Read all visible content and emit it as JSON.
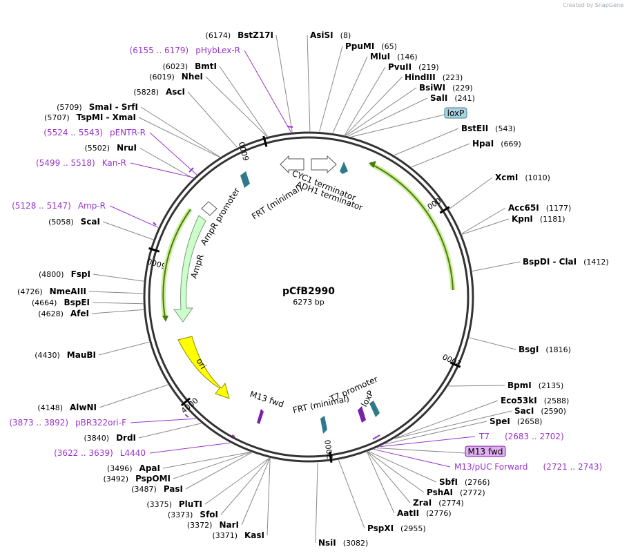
{
  "credit": {
    "prefix": "Created by",
    "brand": "SnapGene"
  },
  "plasmid": {
    "name": "pCfB2990",
    "size_label": "6273 bp",
    "length": 6273
  },
  "ticks": [
    "1000",
    "2000",
    "3000",
    "4000",
    "5000",
    "6000"
  ],
  "sites_right": [
    {
      "name": "AsiSI",
      "pos": "(8)"
    },
    {
      "name": "PpuMI",
      "pos": "(65)"
    },
    {
      "name": "MluI",
      "pos": "(146)"
    },
    {
      "name": "PvuII",
      "pos": "(219)"
    },
    {
      "name": "HindIII",
      "pos": "(223)"
    },
    {
      "name": "BsiWI",
      "pos": "(229)"
    },
    {
      "name": "SalI",
      "pos": "(241)"
    },
    {
      "name": "BstEII",
      "pos": "(543)"
    },
    {
      "name": "HpaI",
      "pos": "(669)"
    },
    {
      "name": "XcmI",
      "pos": "(1010)"
    },
    {
      "name": "Acc65I",
      "pos": "(1177)"
    },
    {
      "name": "KpnI",
      "pos": "(1181)"
    },
    {
      "name": "BspDI - ClaI",
      "pos": "(1412)"
    },
    {
      "name": "BsgI",
      "pos": "(1816)"
    },
    {
      "name": "BpmI",
      "pos": "(2135)"
    },
    {
      "name": "Eco53kI",
      "pos": "(2588)"
    },
    {
      "name": "SacI",
      "pos": "(2590)"
    },
    {
      "name": "SpeI",
      "pos": "(2658)"
    },
    {
      "name": "SbfI",
      "pos": "(2766)"
    },
    {
      "name": "PshAI",
      "pos": "(2772)"
    },
    {
      "name": "ZraI",
      "pos": "(2774)"
    },
    {
      "name": "AatII",
      "pos": "(2776)"
    },
    {
      "name": "PspXI",
      "pos": "(2955)"
    },
    {
      "name": "NsiI",
      "pos": "(3082)"
    }
  ],
  "sites_left": [
    {
      "name": "BstZ17I",
      "pos": "(6174)"
    },
    {
      "name": "BmtI",
      "pos": "(6023)"
    },
    {
      "name": "NheI",
      "pos": "(6019)"
    },
    {
      "name": "AscI",
      "pos": "(5828)"
    },
    {
      "name": "SmaI - SrfI",
      "pos": "(5709)"
    },
    {
      "name": "TspMI - XmaI",
      "pos": "(5707)"
    },
    {
      "name": "NruI",
      "pos": "(5502)"
    },
    {
      "name": "ScaI",
      "pos": "(5058)"
    },
    {
      "name": "FspI",
      "pos": "(4800)"
    },
    {
      "name": "NmeAIII",
      "pos": "(4726)"
    },
    {
      "name": "BspEI",
      "pos": "(4664)"
    },
    {
      "name": "AfeI",
      "pos": "(4628)"
    },
    {
      "name": "MauBI",
      "pos": "(4430)"
    },
    {
      "name": "AlwNI",
      "pos": "(4148)"
    },
    {
      "name": "DrdI",
      "pos": "(3840)"
    },
    {
      "name": "ApaI",
      "pos": "(3496)"
    },
    {
      "name": "PspOMI",
      "pos": "(3492)"
    },
    {
      "name": "PasI",
      "pos": "(3487)"
    },
    {
      "name": "PluTI",
      "pos": "(3375)"
    },
    {
      "name": "SfoI",
      "pos": "(3373)"
    },
    {
      "name": "NarI",
      "pos": "(3372)"
    },
    {
      "name": "KasI",
      "pos": "(3371)"
    }
  ],
  "primers": [
    {
      "name": "pHybLex-R",
      "range": "(6155 .. 6179)"
    },
    {
      "name": "pENTR-R",
      "range": "(5524 .. 5543)"
    },
    {
      "name": "Kan-R",
      "range": "(5499 .. 5518)"
    },
    {
      "name": "Amp-R",
      "range": "(5128 .. 5147)"
    },
    {
      "name": "pBR322ori-F",
      "range": "(3873 .. 3892)"
    },
    {
      "name": "L4440",
      "range": "(3622 .. 3639)"
    },
    {
      "name": "T7",
      "range": "(2683 .. 2702)"
    },
    {
      "name": "M13/pUC Forward",
      "range": "(2721 .. 2743)"
    }
  ],
  "boxed_features": [
    "loxP",
    "M13 fwd"
  ],
  "features": [
    "CYC1 terminator",
    "ADH1 terminator",
    "FRT (minimal)",
    "AmpR promoter",
    "AmpR",
    "ori",
    "M13 fwd",
    "FRT (minimal)",
    "T7 promoter",
    "loxP"
  ],
  "colors": {
    "backbone": "#333333",
    "green_arc": "#5a8a1a",
    "green_glow": "#ccee99",
    "ampr_fill": "#ccffcc",
    "ori_fill": "#ffff00",
    "primer": "#9933cc",
    "teal": "#2e7a8a",
    "lox_box": "#a8d4e0",
    "m13_box": "#e0b0f0"
  }
}
